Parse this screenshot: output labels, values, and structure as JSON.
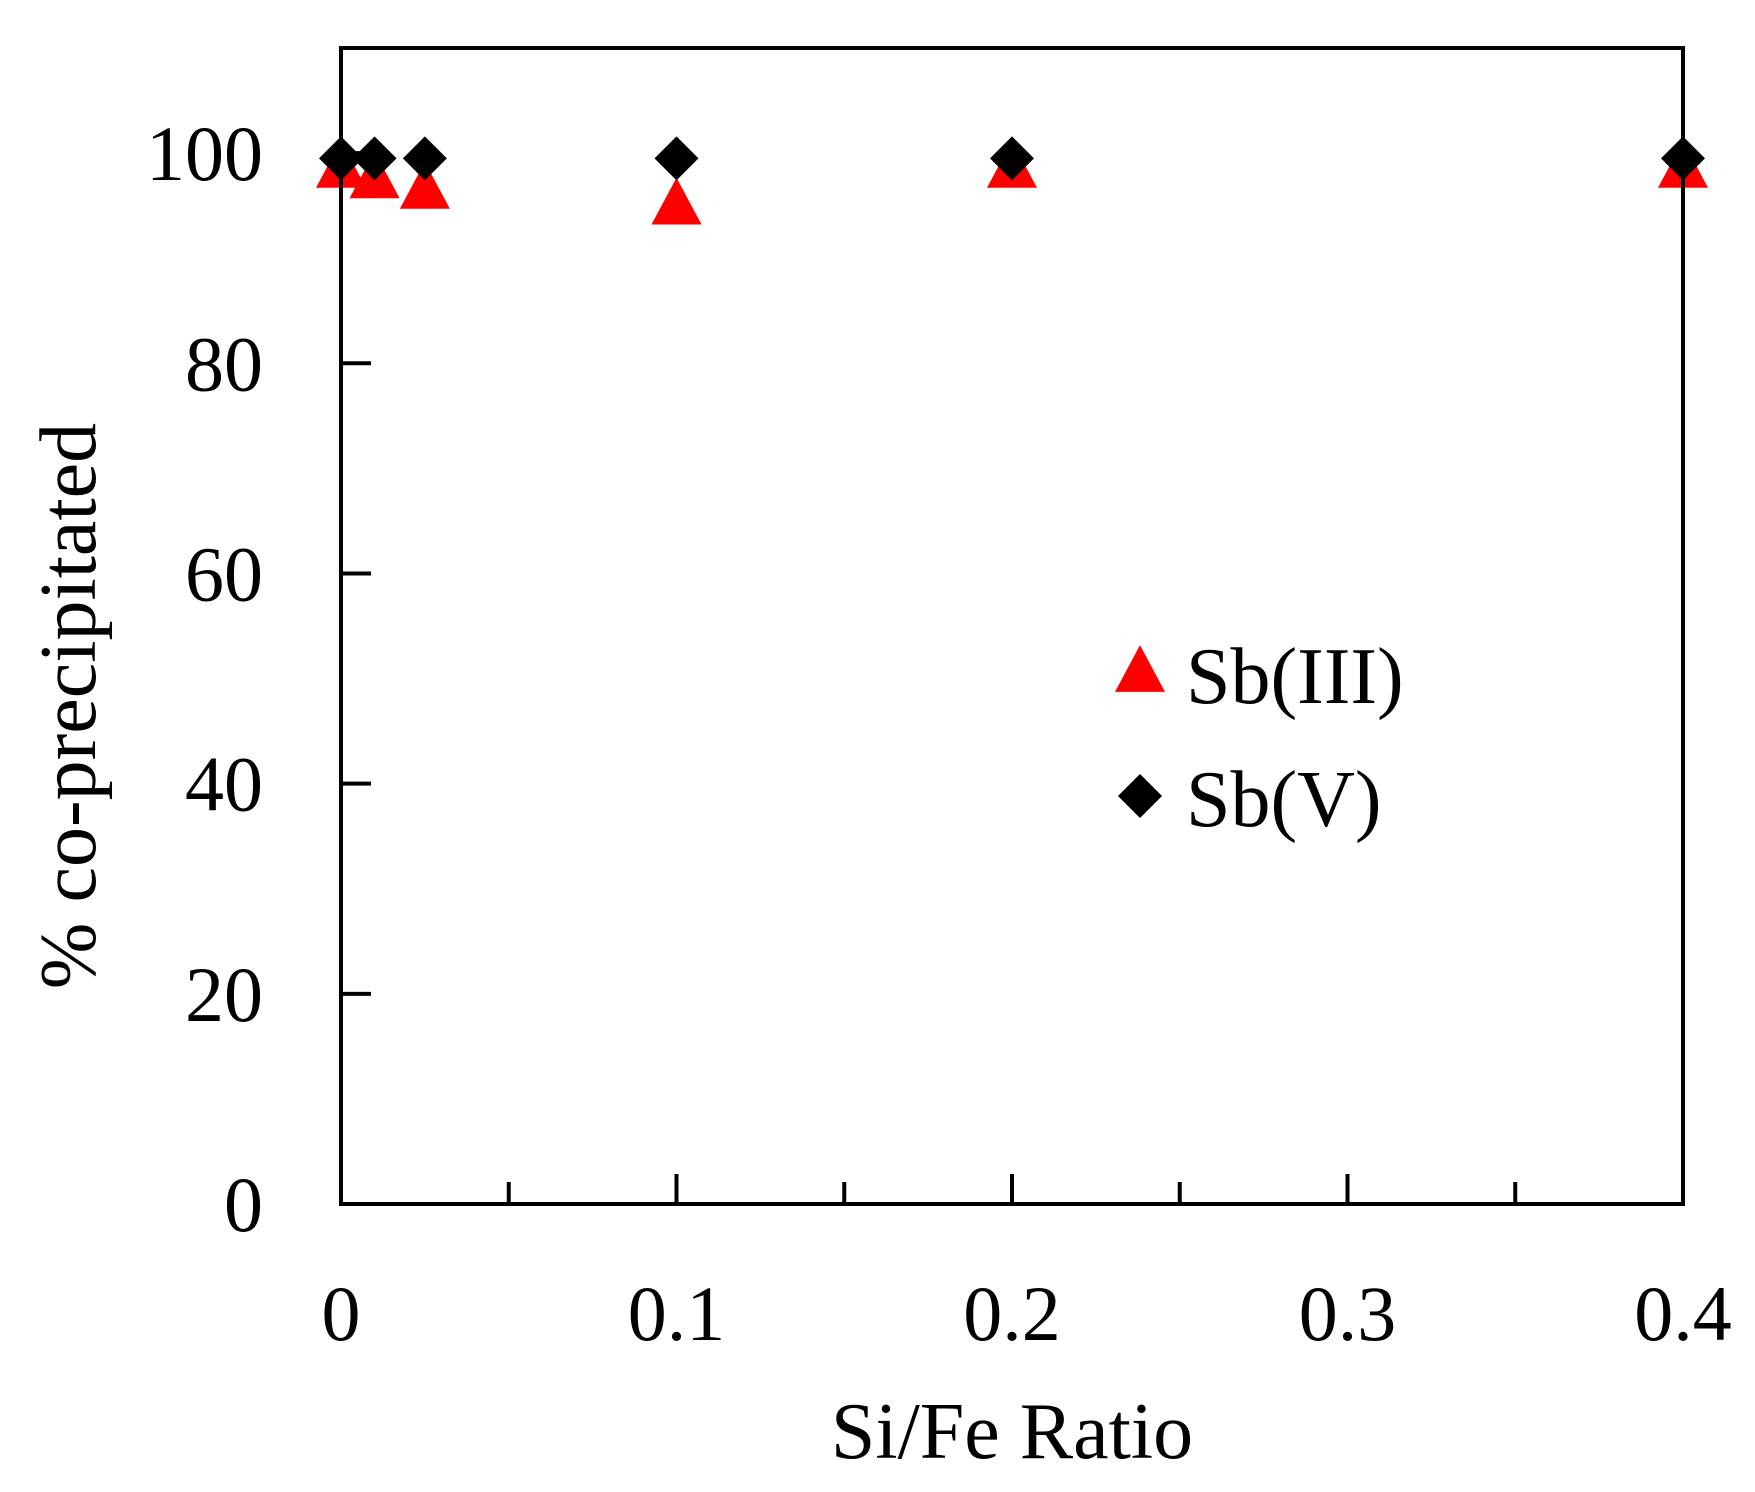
{
  "chart_data": {
    "type": "scatter",
    "title": "",
    "xlabel": "Si/Fe Ratio",
    "ylabel": "% co-precipitated",
    "xlim": [
      0,
      0.4
    ],
    "ylim": [
      0,
      110
    ],
    "x_ticks": [
      0,
      0.1,
      0.2,
      0.3,
      0.4
    ],
    "x_tick_labels": [
      "0",
      "0.1",
      "0.2",
      "0.3",
      "0.4"
    ],
    "x_minor_ticks": [
      0.05,
      0.15,
      0.25,
      0.35
    ],
    "y_ticks": [
      0,
      20,
      40,
      60,
      80,
      100
    ],
    "y_tick_labels": [
      "0",
      "20",
      "40",
      "60",
      "80",
      "100"
    ],
    "grid": false,
    "legend_position": "center-right",
    "series": [
      {
        "name": "Sb(III)",
        "marker": "triangle",
        "color": "#ff0000",
        "points": [
          {
            "x": 0,
            "y": 98.5
          },
          {
            "x": 0.01,
            "y": 97.5
          },
          {
            "x": 0.025,
            "y": 96.5
          },
          {
            "x": 0.1,
            "y": 95
          },
          {
            "x": 0.2,
            "y": 98.5
          },
          {
            "x": 0.4,
            "y": 98.5
          }
        ]
      },
      {
        "name": "Sb(V)",
        "marker": "diamond",
        "color": "#000000",
        "points": [
          {
            "x": 0,
            "y": 99.5
          },
          {
            "x": 0.01,
            "y": 99.5
          },
          {
            "x": 0.025,
            "y": 99.5
          },
          {
            "x": 0.1,
            "y": 99.5
          },
          {
            "x": 0.2,
            "y": 99.5
          },
          {
            "x": 0.4,
            "y": 99.5
          }
        ]
      }
    ]
  }
}
